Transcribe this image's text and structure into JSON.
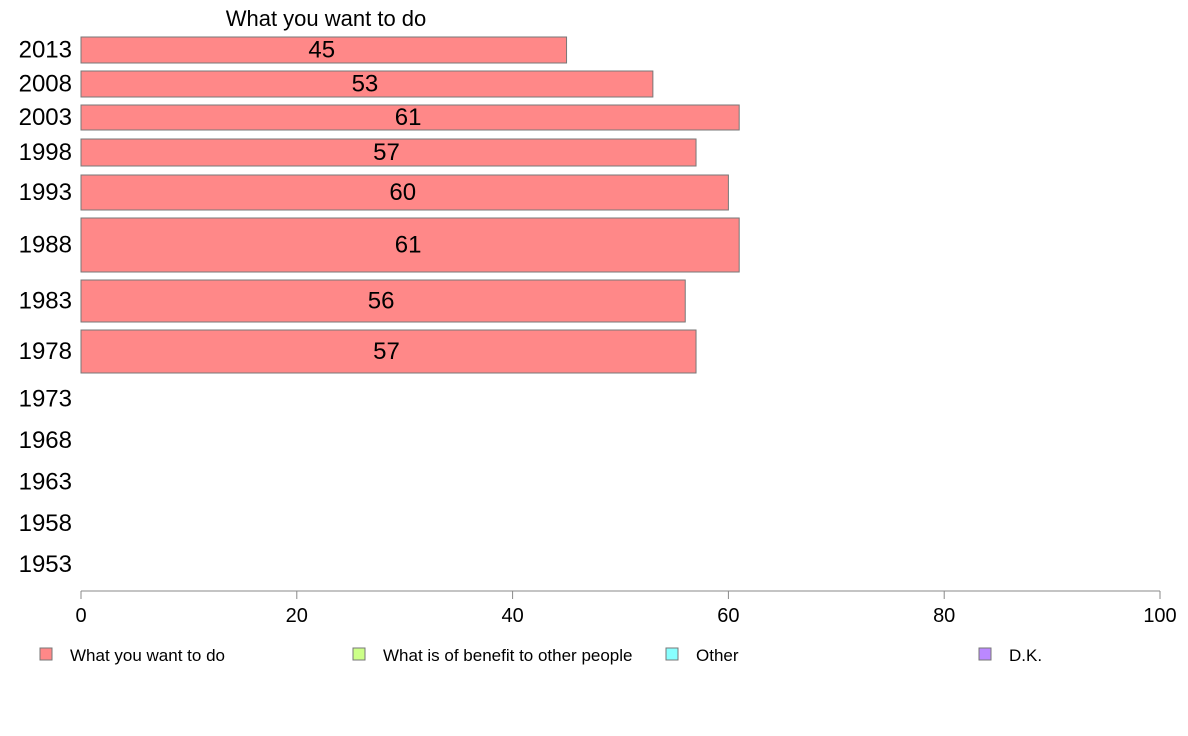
{
  "chart_data": {
    "type": "bar",
    "orientation": "horizontal",
    "series_title": "What you want to do",
    "categories": [
      "2013",
      "2008",
      "2003",
      "1998",
      "1993",
      "1988",
      "1983",
      "1978",
      "1973",
      "1968",
      "1963",
      "1958",
      "1953"
    ],
    "series": [
      {
        "name": "What you want to do",
        "color": "#ff8888",
        "values": [
          45,
          53,
          61,
          57,
          60,
          61,
          56,
          57,
          null,
          null,
          null,
          null,
          null
        ]
      }
    ],
    "legend": [
      {
        "label": "What you want to do",
        "color": "#ff8888"
      },
      {
        "label": "What is of benefit to other people",
        "color": "#ccff88"
      },
      {
        "label": "Other",
        "color": "#88ffff"
      },
      {
        "label": "D.K.",
        "color": "#bb88ff"
      }
    ],
    "xlim": [
      0,
      100
    ],
    "xticks": [
      0,
      20,
      40,
      60,
      80,
      100
    ],
    "legend_position": "bottom",
    "grid": false
  }
}
